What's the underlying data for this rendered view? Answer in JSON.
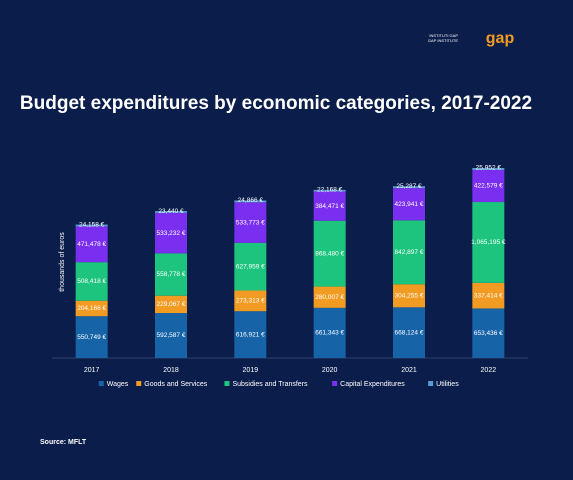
{
  "logo": {
    "line1": "INSTITUTI GAP",
    "line2": "GAP INSTITUTE",
    "mark": "gap"
  },
  "chart_data": {
    "type": "stacked-bar",
    "title": "Budget expenditures by economic categories, 2017-2022",
    "y_label": "thousands of euros",
    "source": "Source: MFLT",
    "categories": [
      "2017",
      "2018",
      "2019",
      "2020",
      "2021",
      "2022"
    ],
    "series": [
      {
        "name": "Wages",
        "color": "#1763a8",
        "values": [
          550749,
          592587,
          616921,
          661343,
          668124,
          653436
        ],
        "value_labels": [
          "550,749 €",
          "592,587 €",
          "616,921 €",
          "661,343 €",
          "668,124 €",
          "653,436 €"
        ]
      },
      {
        "name": "Goods and Services",
        "color": "#f29b22",
        "values": [
          204166,
          229067,
          273313,
          280007,
          304255,
          337414
        ],
        "value_labels": [
          "204,166 €",
          "229,067 €",
          "273,313 €",
          "280,007 €",
          "304,255 €",
          "337,414 €"
        ]
      },
      {
        "name": "Subsidies and Transfers",
        "color": "#1cc47e",
        "values": [
          508418,
          558778,
          627959,
          868480,
          842897,
          1065195
        ],
        "value_labels": [
          "508,418 €",
          "558,778 €",
          "627,959 €",
          "868,480 €",
          "842,897 €",
          "1,065,195 €"
        ]
      },
      {
        "name": "Capital Expenditures",
        "color": "#7a2ef0",
        "values": [
          471478,
          533232,
          533773,
          384471,
          423941,
          422579
        ],
        "value_labels": [
          "471,478 €",
          "533,232 €",
          "533,773 €",
          "384,471 €",
          "423,941 €",
          "422,579 €"
        ]
      },
      {
        "name": "Utilities",
        "color": "#5b9bd5",
        "values": [
          24158,
          23440,
          24866,
          22168,
          25287,
          25952
        ],
        "value_labels": [
          "24,158 €",
          "23,440 €",
          "24,866 €",
          "22,168 €",
          "25,287 €",
          "25,952 €"
        ]
      }
    ]
  }
}
